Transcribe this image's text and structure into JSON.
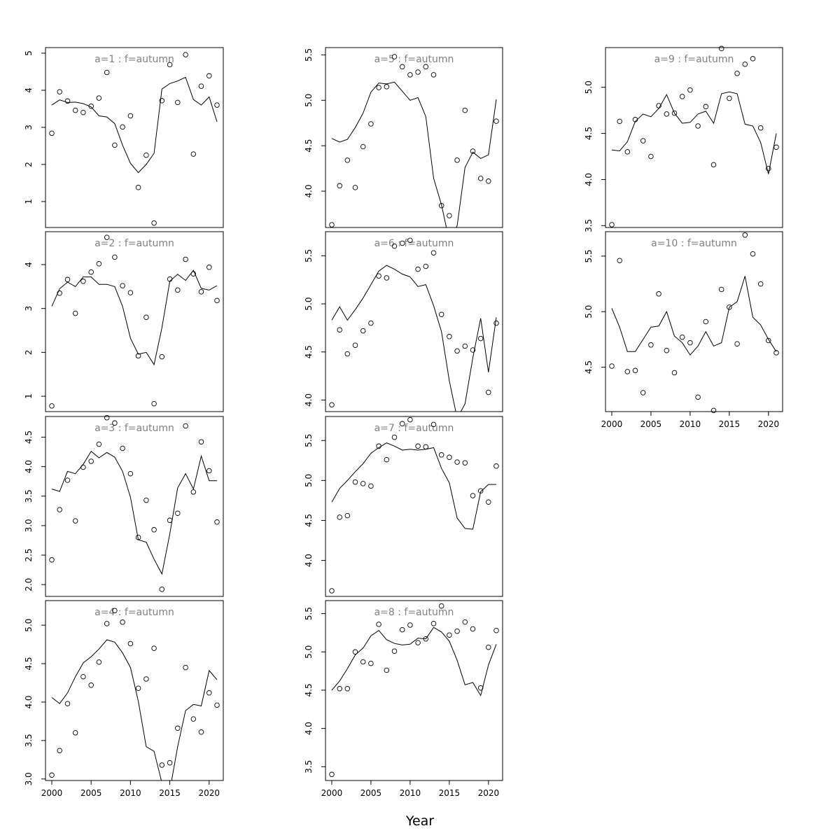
{
  "chart_data": {
    "type": "line",
    "xlabel": "Year",
    "x": [
      2000,
      2001,
      2002,
      2003,
      2004,
      2005,
      2006,
      2007,
      2008,
      2009,
      2010,
      2011,
      2012,
      2013,
      2014,
      2015,
      2016,
      2017,
      2018,
      2019,
      2020,
      2021
    ],
    "x_ticks": [
      2000,
      2005,
      2010,
      2015,
      2020
    ],
    "xlim": [
      1999.2,
      2021.8
    ],
    "colors": {
      "line": "#000000",
      "points": "#000000",
      "title": "#808080"
    },
    "panels": [
      {
        "title": "a=1  :  f=autumn",
        "ylim": [
          0.3,
          5.15
        ],
        "y_ticks": [
          1,
          2,
          3,
          4,
          5
        ],
        "fitted": [
          3.6,
          3.74,
          3.67,
          3.68,
          3.64,
          3.55,
          3.31,
          3.28,
          3.1,
          2.52,
          2.03,
          1.78,
          2.0,
          2.3,
          4.03,
          4.18,
          4.25,
          4.35,
          3.75,
          3.6,
          3.82,
          3.15
        ],
        "observed": [
          2.84,
          3.96,
          3.71,
          3.46,
          3.4,
          3.57,
          3.79,
          4.48,
          2.52,
          3.01,
          3.31,
          1.38,
          2.25,
          0.42,
          3.72,
          4.69,
          3.67,
          4.96,
          2.28,
          4.11,
          4.39,
          3.6
        ]
      },
      {
        "title": "a=2  :  f=autumn",
        "ylim": [
          0.65,
          4.75
        ],
        "y_ticks": [
          1,
          2,
          3,
          4
        ],
        "fitted": [
          3.05,
          3.45,
          3.6,
          3.5,
          3.72,
          3.72,
          3.55,
          3.55,
          3.5,
          3.05,
          2.32,
          1.96,
          2.0,
          1.72,
          2.56,
          3.62,
          3.78,
          3.64,
          3.87,
          3.46,
          3.42,
          3.52
        ],
        "observed": [
          0.78,
          3.35,
          3.66,
          2.89,
          3.62,
          3.83,
          4.02,
          4.62,
          4.17,
          3.52,
          3.36,
          1.92,
          2.8,
          0.83,
          1.9,
          3.67,
          3.42,
          4.12,
          3.79,
          3.38,
          3.94,
          3.18
        ]
      },
      {
        "title": "a=3  :  f=autumn",
        "ylim": [
          1.8,
          4.85
        ],
        "y_ticks": [
          2.0,
          2.5,
          3.0,
          3.5,
          4.0,
          4.5
        ],
        "fitted": [
          3.62,
          3.58,
          3.92,
          3.88,
          4.04,
          4.26,
          4.15,
          4.24,
          4.16,
          3.92,
          3.48,
          2.76,
          2.72,
          2.43,
          2.18,
          2.86,
          3.64,
          3.88,
          3.62,
          4.18,
          3.76,
          3.76
        ],
        "observed": [
          2.42,
          3.27,
          3.77,
          3.08,
          3.99,
          4.09,
          4.38,
          4.83,
          4.74,
          4.31,
          3.88,
          2.8,
          3.43,
          2.93,
          1.92,
          3.09,
          3.21,
          4.69,
          3.57,
          4.42,
          3.93,
          3.06
        ]
      },
      {
        "title": "a=4  :  f=autumn",
        "ylim": [
          2.98,
          5.32
        ],
        "y_ticks": [
          3.0,
          3.5,
          4.0,
          4.5,
          5.0
        ],
        "fitted": [
          4.06,
          3.98,
          4.12,
          4.33,
          4.51,
          4.59,
          4.69,
          4.81,
          4.78,
          4.64,
          4.45,
          4.01,
          3.42,
          3.36,
          2.95,
          2.85,
          3.42,
          3.89,
          3.97,
          3.95,
          4.41,
          4.29
        ],
        "observed": [
          3.05,
          3.37,
          3.98,
          3.6,
          4.33,
          4.22,
          4.52,
          5.02,
          5.19,
          5.04,
          4.76,
          4.18,
          4.3,
          4.7,
          3.18,
          3.21,
          3.66,
          4.45,
          3.78,
          3.61,
          4.12,
          3.96
        ]
      },
      {
        "title": "a=5  :  f=autumn",
        "ylim": [
          3.6,
          5.58
        ],
        "y_ticks": [
          4.0,
          4.5,
          5.0,
          5.5
        ],
        "fitted": [
          4.58,
          4.54,
          4.57,
          4.7,
          4.86,
          5.09,
          5.19,
          5.18,
          5.2,
          5.1,
          5.0,
          5.03,
          4.82,
          4.14,
          3.85,
          3.45,
          3.62,
          4.26,
          4.43,
          4.36,
          4.4,
          5.01
        ],
        "observed": [
          3.63,
          4.06,
          4.34,
          4.04,
          4.49,
          4.74,
          5.14,
          5.15,
          5.48,
          5.37,
          5.28,
          5.31,
          5.37,
          5.28,
          3.84,
          3.73,
          4.34,
          4.89,
          4.44,
          4.14,
          4.11,
          4.77
        ]
      },
      {
        "title": "a=6  :  f=autumn",
        "ylim": [
          3.88,
          5.75
        ],
        "y_ticks": [
          4.0,
          4.5,
          5.0,
          5.5
        ],
        "fitted": [
          4.83,
          4.97,
          4.83,
          4.94,
          5.06,
          5.2,
          5.34,
          5.4,
          5.36,
          5.31,
          5.28,
          5.18,
          5.2,
          4.98,
          4.71,
          4.2,
          3.81,
          3.96,
          4.44,
          4.85,
          4.29,
          4.86
        ],
        "observed": [
          3.95,
          4.73,
          4.48,
          4.57,
          4.72,
          4.8,
          5.29,
          5.27,
          5.6,
          5.63,
          5.66,
          5.36,
          5.39,
          5.53,
          4.89,
          4.66,
          4.51,
          4.56,
          4.52,
          4.64,
          4.08,
          4.8
        ]
      },
      {
        "title": "a=7  :  f=autumn",
        "ylim": [
          3.55,
          5.8
        ],
        "y_ticks": [
          4.0,
          4.5,
          5.0,
          5.5
        ],
        "fitted": [
          4.73,
          4.9,
          5.0,
          5.11,
          5.21,
          5.34,
          5.41,
          5.47,
          5.43,
          5.38,
          5.39,
          5.38,
          5.39,
          5.41,
          5.15,
          4.97,
          4.53,
          4.4,
          4.39,
          4.86,
          4.95,
          4.95
        ],
        "observed": [
          3.62,
          4.54,
          4.56,
          4.98,
          4.96,
          4.93,
          5.43,
          5.26,
          5.54,
          5.71,
          5.76,
          5.43,
          5.42,
          5.7,
          5.32,
          5.29,
          5.23,
          5.22,
          4.81,
          4.87,
          4.73,
          5.18
        ]
      },
      {
        "title": "a=8  :  f=autumn",
        "ylim": [
          3.32,
          5.67
        ],
        "y_ticks": [
          3.5,
          4.0,
          4.5,
          5.0,
          5.5
        ],
        "fitted": [
          4.5,
          4.62,
          4.78,
          4.96,
          5.05,
          5.21,
          5.28,
          5.16,
          5.11,
          5.09,
          5.1,
          5.18,
          5.17,
          5.32,
          5.26,
          5.14,
          4.89,
          4.57,
          4.6,
          4.43,
          4.83,
          5.1
        ],
        "observed": [
          3.4,
          4.52,
          4.52,
          5.0,
          4.87,
          4.85,
          5.36,
          4.76,
          5.01,
          5.29,
          5.35,
          5.12,
          5.17,
          5.37,
          5.6,
          5.22,
          5.27,
          5.39,
          5.3,
          4.53,
          5.06,
          5.28
        ]
      },
      {
        "title": "a=9  :  f=autumn",
        "ylim": [
          3.48,
          5.43
        ],
        "y_ticks": [
          3.5,
          4.0,
          4.5,
          5.0
        ],
        "fitted": [
          4.32,
          4.31,
          4.41,
          4.63,
          4.71,
          4.68,
          4.77,
          4.92,
          4.72,
          4.61,
          4.62,
          4.71,
          4.74,
          4.61,
          4.93,
          4.95,
          4.93,
          4.6,
          4.58,
          4.4,
          4.06,
          4.5
        ],
        "observed": [
          3.51,
          4.63,
          4.3,
          4.65,
          4.42,
          4.25,
          4.8,
          4.71,
          4.72,
          4.9,
          4.97,
          4.58,
          4.79,
          4.16,
          5.42,
          4.88,
          5.15,
          5.25,
          5.31,
          4.56,
          4.12,
          4.35
        ]
      },
      {
        "title": "a=10  :  f=autumn",
        "ylim": [
          4.1,
          5.72
        ],
        "y_ticks": [
          4.5,
          5.0,
          5.5
        ],
        "fitted": [
          5.03,
          4.86,
          4.64,
          4.64,
          4.75,
          4.86,
          4.87,
          5.0,
          4.78,
          4.72,
          4.61,
          4.69,
          4.82,
          4.69,
          4.72,
          5.04,
          5.09,
          5.32,
          4.95,
          4.88,
          4.75,
          4.64
        ],
        "observed": [
          4.51,
          5.46,
          4.46,
          4.47,
          4.27,
          4.7,
          5.16,
          4.65,
          4.45,
          4.77,
          4.72,
          4.23,
          4.91,
          4.11,
          5.2,
          5.04,
          4.71,
          5.69,
          5.52,
          5.25,
          4.74,
          4.63
        ]
      }
    ]
  }
}
